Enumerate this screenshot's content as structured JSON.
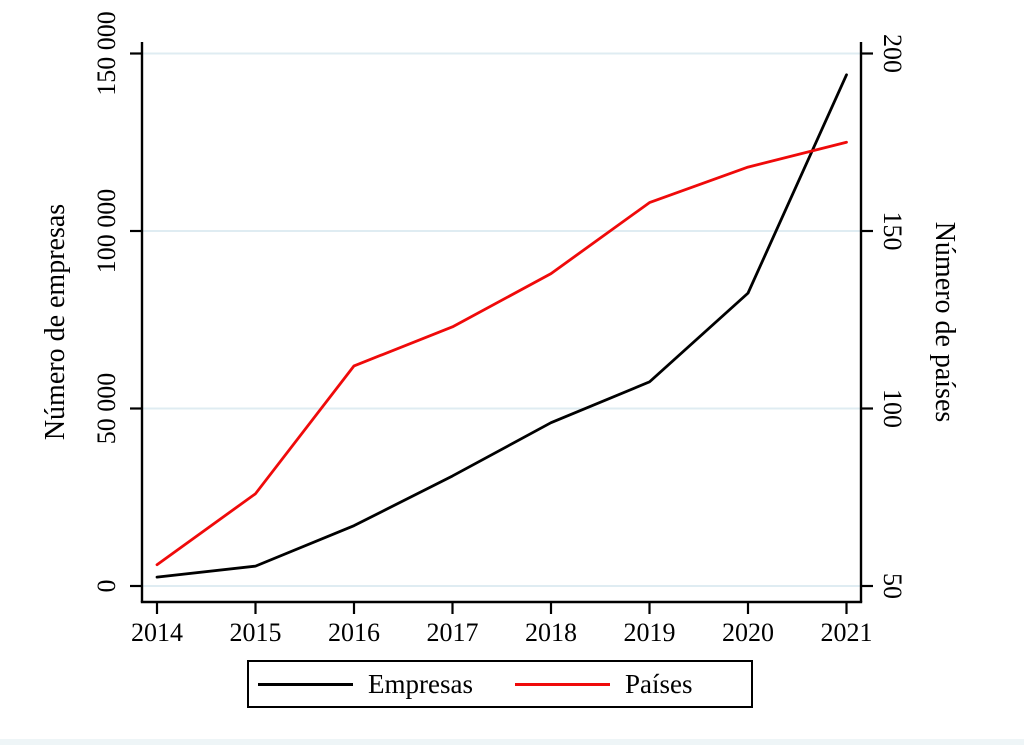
{
  "figure": {
    "background": "#ffffff",
    "bottom_strip_color": "#eef5f7"
  },
  "colors": {
    "grid": "#dfecf2",
    "axis": "#000000",
    "text": "#000000"
  },
  "chart_data": {
    "type": "line",
    "x": [
      2014,
      2015,
      2016,
      2017,
      2018,
      2019,
      2020,
      2021
    ],
    "x_tick_labels": [
      "2014",
      "2015",
      "2016",
      "2017",
      "2018",
      "2019",
      "2020",
      "2021"
    ],
    "series": [
      {
        "name": "Empresas",
        "axis": "left",
        "color": "#000000",
        "values": [
          2500,
          5600,
          17000,
          31000,
          46000,
          57500,
          82500,
          144000
        ]
      },
      {
        "name": "Países",
        "axis": "right",
        "color": "#ef0a0a",
        "values": [
          56,
          76,
          112,
          123,
          138,
          158,
          168,
          175
        ]
      }
    ],
    "left_axis": {
      "title": "Número de empresas",
      "ticks": [
        {
          "v": 0,
          "label": "0"
        },
        {
          "v": 50000,
          "label": "50 000"
        },
        {
          "v": 100000,
          "label": "100 000"
        },
        {
          "v": 150000,
          "label": "150 000"
        }
      ],
      "range": [
        0,
        153000
      ]
    },
    "right_axis": {
      "title": "Número de países",
      "ticks": [
        {
          "v": 50,
          "label": "50"
        },
        {
          "v": 100,
          "label": "100"
        },
        {
          "v": 150,
          "label": "150"
        },
        {
          "v": 200,
          "label": "200"
        }
      ],
      "range": [
        50,
        203
      ]
    },
    "grid": true,
    "legend_position": "bottom-center"
  },
  "legend": {
    "items": [
      {
        "label": "Empresas",
        "color": "#000000"
      },
      {
        "label": "Países",
        "color": "#ef0a0a"
      }
    ]
  }
}
